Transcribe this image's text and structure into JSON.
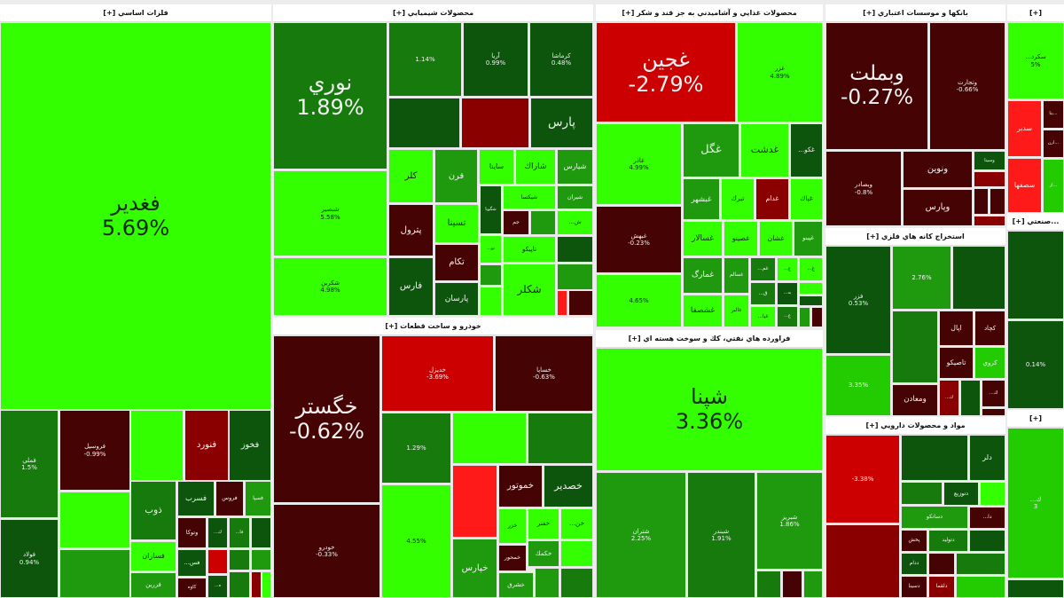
{
  "colors": {
    "bright_green": "#33ff00",
    "green": "#22cc00",
    "mid_green": "#1f9a0f",
    "dark_green": "#167a0c",
    "darkest_green": "#0d550d",
    "bright_red": "#ff1a1a",
    "red": "#cc0000",
    "dark_red": "#8a0000",
    "darkest_red": "#450303"
  },
  "sectors": [
    {
      "title": "فلزات اساسي [+]",
      "tiles": [
        {
          "label": "فغدير",
          "pct": "5.69%",
          "color": "#33ff00"
        },
        {
          "label": "فملي",
          "pct": "1.5%",
          "color": "#167a0c"
        },
        {
          "label": "فولاد",
          "pct": "0.94%",
          "color": "#0d550d"
        },
        {
          "label": "فروسيل",
          "pct": "-0.99%",
          "color": "#450303"
        },
        {
          "label": "",
          "pct": "",
          "color": "#33ff00"
        },
        {
          "label": "فنورد",
          "pct": "",
          "color": "#8a0000"
        },
        {
          "label": "فخوز",
          "pct": "",
          "color": "#0d550d"
        },
        {
          "label": "",
          "pct": "",
          "color": "#33ff00"
        },
        {
          "label": "",
          "pct": "",
          "color": "#1f9a0f"
        },
        {
          "label": "ذوب",
          "pct": "",
          "color": "#167a0c"
        },
        {
          "label": "فسازان",
          "pct": "",
          "color": "#33ff00"
        },
        {
          "label": "فزرين",
          "pct": "",
          "color": "#1f9a0f"
        },
        {
          "label": "فسرب",
          "pct": "",
          "color": "#0d550d"
        },
        {
          "label": "فروس",
          "pct": "",
          "color": "#450303"
        },
        {
          "label": "فسپا",
          "pct": "",
          "color": "#1f9a0f"
        },
        {
          "label": "وتوكا",
          "pct": "",
          "color": "#450303"
        },
        {
          "label": "ك...",
          "pct": "",
          "color": "#0d550d"
        },
        {
          "label": "فا...",
          "pct": "",
          "color": "#167a0c"
        },
        {
          "label": "",
          "pct": "",
          "color": "#0d550d"
        },
        {
          "label": "فس...",
          "pct": "",
          "color": "#0d550d"
        },
        {
          "label": "",
          "pct": "",
          "color": "#cc0000"
        },
        {
          "label": "",
          "pct": "",
          "color": "#167a0c"
        },
        {
          "label": "",
          "pct": "",
          "color": "#1f9a0f"
        },
        {
          "label": "كاوه",
          "pct": "",
          "color": "#450303"
        },
        {
          "label": "ه...",
          "pct": "",
          "color": "#0d550d"
        },
        {
          "label": "",
          "pct": "",
          "color": "#167a0c"
        },
        {
          "label": "",
          "pct": "",
          "color": "#8a0000"
        },
        {
          "label": "",
          "pct": "",
          "color": "#33ff00"
        }
      ]
    },
    {
      "title": "محصولات شيميايي [+]",
      "tiles": [
        {
          "label": "نوري",
          "pct": "1.89%",
          "color": "#167a0c"
        },
        {
          "label": "شبصير",
          "pct": "5.58%",
          "color": "#33ff00"
        },
        {
          "label": "شكربن",
          "pct": "4.98%",
          "color": "#33ff00"
        },
        {
          "label": "",
          "pct": "1.14%",
          "color": "#167a0c"
        },
        {
          "label": "آريا",
          "pct": "0.99%",
          "color": "#0d550d"
        },
        {
          "label": "كرماشا",
          "pct": "0.48%",
          "color": "#0d550d"
        },
        {
          "label": "",
          "pct": "",
          "color": "#0d550d"
        },
        {
          "label": "",
          "pct": "",
          "color": "#8a0000"
        },
        {
          "label": "پارس",
          "pct": "",
          "color": "#0d550d"
        },
        {
          "label": "كلر",
          "pct": "",
          "color": "#33ff00"
        },
        {
          "label": "قرن",
          "pct": "",
          "color": "#1f9a0f"
        },
        {
          "label": "ساينا",
          "pct": "",
          "color": "#33ff00"
        },
        {
          "label": "شاراك",
          "pct": "",
          "color": "#33ff00"
        },
        {
          "label": "شيارس",
          "pct": "",
          "color": "#1f9a0f"
        },
        {
          "label": "پترول",
          "pct": "",
          "color": "#450303"
        },
        {
          "label": "فارس",
          "pct": "",
          "color": "#0d550d"
        },
        {
          "label": "تسينا",
          "pct": "",
          "color": "#33ff00"
        },
        {
          "label": "شگويا",
          "pct": "",
          "color": "#0d550d"
        },
        {
          "label": "شيكسا",
          "pct": "",
          "color": "#33ff00"
        },
        {
          "label": "شيران",
          "pct": "",
          "color": "#1f9a0f"
        },
        {
          "label": "تكام",
          "pct": "",
          "color": "#450303"
        },
        {
          "label": "پارسان",
          "pct": "",
          "color": "#0d550d"
        },
        {
          "label": "تو...",
          "pct": "",
          "color": "#33ff00"
        },
        {
          "label": "جم",
          "pct": "",
          "color": "#450303"
        },
        {
          "label": "",
          "pct": "",
          "color": "#1f9a0f"
        },
        {
          "label": "ش...",
          "pct": "",
          "color": "#33ff00"
        },
        {
          "label": "",
          "pct": "",
          "color": "#1f9a0f"
        },
        {
          "label": "",
          "pct": "",
          "color": "#33ff00"
        },
        {
          "label": "تاپيكو",
          "pct": "",
          "color": "#33ff00"
        },
        {
          "label": "شكلر",
          "pct": "",
          "color": "#33ff00"
        },
        {
          "label": "",
          "pct": "",
          "color": "#0d550d"
        },
        {
          "label": "",
          "pct": "",
          "color": "#1f9a0f"
        },
        {
          "label": "",
          "pct": "",
          "color": "#ff1a1a"
        },
        {
          "label": "",
          "pct": "",
          "color": "#450303"
        }
      ]
    },
    {
      "title": "خودرو و ساخت قطعات [+]",
      "tiles": [
        {
          "label": "خگستر",
          "pct": "-0.62%",
          "color": "#450303"
        },
        {
          "label": "خودرو",
          "pct": "-0.33%",
          "color": "#450303"
        },
        {
          "label": "خديزل",
          "pct": "-3.69%",
          "color": "#cc0000"
        },
        {
          "label": "خساپا",
          "pct": "-0.63%",
          "color": "#450303"
        },
        {
          "label": "",
          "pct": "1.29%",
          "color": "#167a0c"
        },
        {
          "label": "",
          "pct": "",
          "color": "#33ff00"
        },
        {
          "label": "",
          "pct": "",
          "color": "#167a0c"
        },
        {
          "label": "",
          "pct": "4.55%",
          "color": "#33ff00"
        },
        {
          "label": "",
          "pct": "",
          "color": "#ff1a1a"
        },
        {
          "label": "خموتور",
          "pct": "",
          "color": "#450303"
        },
        {
          "label": "خصدير",
          "pct": "",
          "color": "#0d550d"
        },
        {
          "label": "خزر",
          "pct": "",
          "color": "#33ff00"
        },
        {
          "label": "خفنر",
          "pct": "",
          "color": "#33ff00"
        },
        {
          "label": "خن...",
          "pct": "",
          "color": "#33ff00"
        },
        {
          "label": "خپارس",
          "pct": "",
          "color": "#1f9a0f"
        },
        {
          "label": "خمحور",
          "pct": "",
          "color": "#450303"
        },
        {
          "label": "خكمك",
          "pct": "",
          "color": "#1f9a0f"
        },
        {
          "label": "",
          "pct": "",
          "color": "#33ff00"
        },
        {
          "label": "خشرق",
          "pct": "",
          "color": "#1f9a0f"
        },
        {
          "label": "",
          "pct": "",
          "color": "#1f9a0f"
        },
        {
          "label": "",
          "pct": "",
          "color": "#167a0c"
        }
      ]
    },
    {
      "title": "محصولات غذايي و آشاميدني به جز قند و شكر [+]",
      "tiles": [
        {
          "label": "غجين",
          "pct": "-2.79%",
          "color": "#cc0000"
        },
        {
          "label": "غزر",
          "pct": "4.89%",
          "color": "#33ff00"
        },
        {
          "label": "غاذر",
          "pct": "4.99%",
          "color": "#33ff00"
        },
        {
          "label": "غبهش",
          "pct": "-0.23%",
          "color": "#450303"
        },
        {
          "label": "",
          "pct": "4.65%",
          "color": "#33ff00"
        },
        {
          "label": "غگل",
          "pct": "",
          "color": "#1f9a0f"
        },
        {
          "label": "غدشت",
          "pct": "",
          "color": "#33ff00"
        },
        {
          "label": "غكو...",
          "pct": "",
          "color": "#0d550d"
        },
        {
          "label": "غبشهر",
          "pct": "",
          "color": "#1f9a0f"
        },
        {
          "label": "تبرك",
          "pct": "",
          "color": "#33ff00"
        },
        {
          "label": "غدام",
          "pct": "",
          "color": "#8a0000"
        },
        {
          "label": "غپاك",
          "pct": "",
          "color": "#33ff00"
        },
        {
          "label": "غسالار",
          "pct": "",
          "color": "#33ff00"
        },
        {
          "label": "غصينو",
          "pct": "",
          "color": "#33ff00"
        },
        {
          "label": "غشان",
          "pct": "",
          "color": "#33ff00"
        },
        {
          "label": "غپينو",
          "pct": "",
          "color": "#1f9a0f"
        },
        {
          "label": "غمارگ",
          "pct": "",
          "color": "#1f9a0f"
        },
        {
          "label": "غسالم",
          "pct": "",
          "color": "#1f9a0f"
        },
        {
          "label": "غم...",
          "pct": "",
          "color": "#167a0c"
        },
        {
          "label": "ق...",
          "pct": "",
          "color": "#167a0c"
        },
        {
          "label": "غ...",
          "pct": "",
          "color": "#33ff00"
        },
        {
          "label": "غ...",
          "pct": "",
          "color": "#33ff00"
        },
        {
          "label": "به...",
          "pct": "",
          "color": "#0d550d"
        },
        {
          "label": "",
          "pct": "",
          "color": "#33ff00"
        },
        {
          "label": "",
          "pct": "",
          "color": "#0d550d"
        },
        {
          "label": "غشصفا",
          "pct": "",
          "color": "#33ff00"
        },
        {
          "label": "غالبر",
          "pct": "",
          "color": "#33ff00"
        },
        {
          "label": "غيا...",
          "pct": "",
          "color": "#33ff00"
        },
        {
          "label": "غ...",
          "pct": "",
          "color": "#167a0c"
        },
        {
          "label": "",
          "pct": "",
          "color": "#1f9a0f"
        },
        {
          "label": "",
          "pct": "",
          "color": "#450303"
        }
      ]
    },
    {
      "title": "فراورده هاي نفتي، كك و سوخت هسته اي [+]",
      "tiles": [
        {
          "label": "شپنا",
          "pct": "3.36%",
          "color": "#33ff00"
        },
        {
          "label": "شتران",
          "pct": "2.25%",
          "color": "#1f9a0f"
        },
        {
          "label": "شبندر",
          "pct": "1.91%",
          "color": "#167a0c"
        },
        {
          "label": "شبريز",
          "pct": "1.86%",
          "color": "#1f9a0f"
        },
        {
          "label": "",
          "pct": "",
          "color": "#167a0c"
        },
        {
          "label": "",
          "pct": "",
          "color": "#450303"
        },
        {
          "label": "",
          "pct": "",
          "color": "#1f9a0f"
        }
      ]
    },
    {
      "title": "بانكها و موسسات اعتباري [+]",
      "tiles": [
        {
          "label": "وبملت",
          "pct": "-0.27%",
          "color": "#450303"
        },
        {
          "label": "وتجارت",
          "pct": "-0.66%",
          "color": "#450303"
        },
        {
          "label": "وبصادر",
          "pct": "-0.8%",
          "color": "#450303"
        },
        {
          "label": "ونوين",
          "pct": "",
          "color": "#450303"
        },
        {
          "label": "وپارس",
          "pct": "",
          "color": "#450303"
        },
        {
          "label": "وسينا",
          "pct": "",
          "color": "#0d550d"
        },
        {
          "label": "",
          "pct": "",
          "color": "#8a0000"
        },
        {
          "label": "",
          "pct": "",
          "color": "#450303"
        },
        {
          "label": "",
          "pct": "",
          "color": "#450303"
        },
        {
          "label": "",
          "pct": "",
          "color": "#8a0000"
        }
      ]
    },
    {
      "title": "استخراج كانه هاي فلزي [+]",
      "tiles": [
        {
          "label": "فزر",
          "pct": "0.53%",
          "color": "#0d550d"
        },
        {
          "label": "",
          "pct": "3.35%",
          "color": "#22cc00"
        },
        {
          "label": "",
          "pct": "2.76%",
          "color": "#1f9a0f"
        },
        {
          "label": "",
          "pct": "",
          "color": "#0d550d"
        },
        {
          "label": "",
          "pct": "",
          "color": "#167a0c"
        },
        {
          "label": "اپال",
          "pct": "",
          "color": "#450303"
        },
        {
          "label": "كچاد",
          "pct": "",
          "color": "#450303"
        },
        {
          "label": "تاصيكو",
          "pct": "",
          "color": "#450303"
        },
        {
          "label": "كروي",
          "pct": "",
          "color": "#22cc00"
        },
        {
          "label": "ومعادن",
          "pct": "",
          "color": "#450303"
        },
        {
          "label": "ك...",
          "pct": "",
          "color": "#8a0000"
        },
        {
          "label": "",
          "pct": "",
          "color": "#0d550d"
        },
        {
          "label": "ك...",
          "pct": "",
          "color": "#450303"
        },
        {
          "label": "",
          "pct": "",
          "color": "#450303"
        }
      ]
    },
    {
      "title": "مواد و محصولات دارويي [+]",
      "tiles": [
        {
          "label": "",
          "pct": "-3.38%",
          "color": "#cc0000"
        },
        {
          "label": "",
          "pct": "",
          "color": "#8a0000"
        },
        {
          "label": "",
          "pct": "",
          "color": "#0d550d"
        },
        {
          "label": "دلر",
          "pct": "",
          "color": "#0d550d"
        },
        {
          "label": "",
          "pct": "",
          "color": "#167a0c"
        },
        {
          "label": "دتوزيع",
          "pct": "",
          "color": "#0d550d"
        },
        {
          "label": "",
          "pct": "",
          "color": "#33ff00"
        },
        {
          "label": "دسانكو",
          "pct": "",
          "color": "#1f9a0f"
        },
        {
          "label": "دا...",
          "pct": "",
          "color": "#450303"
        },
        {
          "label": "پخش",
          "pct": "",
          "color": "#450303"
        },
        {
          "label": "دتوليد",
          "pct": "",
          "color": "#167a0c"
        },
        {
          "label": "",
          "pct": "",
          "color": "#0d550d"
        },
        {
          "label": "ددام",
          "pct": "",
          "color": "#0d550d"
        },
        {
          "label": "",
          "pct": "",
          "color": "#450303"
        },
        {
          "label": "",
          "pct": "",
          "color": "#167a0c"
        },
        {
          "label": "دسينا",
          "pct": "",
          "color": "#450303"
        },
        {
          "label": "دلقما",
          "pct": "",
          "color": "#8a0000"
        },
        {
          "label": "",
          "pct": "",
          "color": "#22cc00"
        }
      ]
    },
    {
      "title": "[+]",
      "tiles": [
        {
          "label": "سكرد...",
          "pct": "5%",
          "color": "#33ff00"
        },
        {
          "label": "سدبر",
          "pct": "",
          "color": "#ff1a1a"
        },
        {
          "label": "سصفها",
          "pct": "",
          "color": "#ff1a1a"
        },
        {
          "label": "...يتا",
          "pct": "",
          "color": "#450303"
        },
        {
          "label": "...ارن",
          "pct": "",
          "color": "#450303"
        },
        {
          "label": "...ار",
          "pct": "",
          "color": "#22cc00"
        }
      ]
    },
    {
      "title": "...صنعتي [+]",
      "tiles": [
        {
          "label": "",
          "pct": "",
          "color": "#0d550d"
        },
        {
          "label": "",
          "pct": "0.14%",
          "color": "#0d550d"
        }
      ]
    },
    {
      "title": "[+]",
      "tiles": [
        {
          "label": "ك...",
          "pct": "3",
          "color": "#22cc00"
        },
        {
          "label": "",
          "pct": "",
          "color": "#0d550d"
        }
      ]
    }
  ]
}
